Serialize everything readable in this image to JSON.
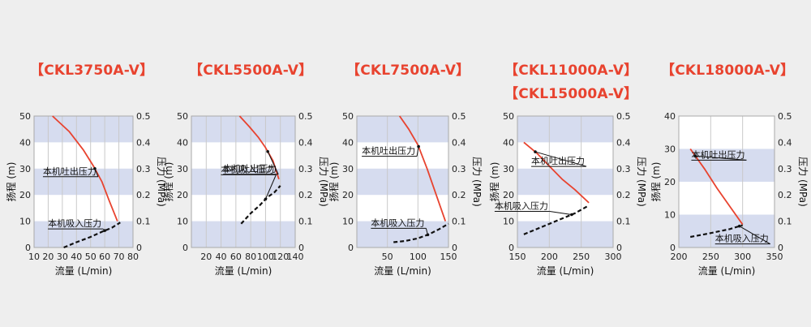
{
  "chart_data": [
    {
      "type": "line",
      "titles": [
        "【CKL3750A-V】"
      ],
      "xlabel": "流量 (L/min)",
      "ylabel_left": "扬程 (m)",
      "ylabel_right": "压力 (MPa)",
      "xlim": [
        10,
        80
      ],
      "xticks": [
        10,
        20,
        30,
        40,
        50,
        60,
        70,
        80
      ],
      "ylim_left": [
        0,
        50
      ],
      "yticks_left": [
        0,
        10,
        20,
        30,
        40,
        50
      ],
      "ylim_right": [
        0,
        0.5
      ],
      "yticks_right": [
        "0",
        "0.1",
        "0.2",
        "0.3",
        "0.4",
        "0.5"
      ],
      "series": [
        {
          "name": "本机吐出压力",
          "axis": "left",
          "style": "solid",
          "color": "#e8432f",
          "x": [
            23,
            35,
            45,
            52,
            58,
            63,
            69
          ],
          "y": [
            50,
            44,
            37,
            31,
            25,
            18,
            10
          ]
        },
        {
          "name": "本机吸入压力",
          "axis": "right",
          "style": "dashed",
          "color": "#111111",
          "x": [
            31,
            40,
            50,
            58,
            65,
            71
          ],
          "y": [
            0.0,
            0.02,
            0.04,
            0.06,
            0.075,
            0.095
          ]
        }
      ],
      "callouts": [
        {
          "text": "本机吐出压力",
          "series": 0,
          "at_x": 53
        },
        {
          "text": "本机吸入压力",
          "series": 1,
          "at_x": 60
        }
      ]
    },
    {
      "type": "line",
      "titles": [
        "【CKL5500A-V】"
      ],
      "xlabel": "流量 (L/min)",
      "ylabel_left": "扬程 (m)",
      "ylabel_right": "压力 (MPa)",
      "xlim": [
        0,
        140
      ],
      "xticks": [
        20,
        40,
        60,
        80,
        100,
        120,
        140
      ],
      "ylim_left": [
        0,
        50
      ],
      "yticks_left": [
        0,
        10,
        20,
        30,
        40,
        50
      ],
      "ylim_right": [
        0,
        0.5
      ],
      "yticks_right": [
        "0",
        "0.1",
        "0.2",
        "0.3",
        "0.4",
        "0.5"
      ],
      "series": [
        {
          "name": "本机吐出压力",
          "axis": "left",
          "style": "solid",
          "color": "#e8432f",
          "x": [
            65,
            78,
            90,
            100,
            110,
            118
          ],
          "y": [
            50,
            46,
            42,
            38,
            33,
            26
          ]
        },
        {
          "name": "本机吸入压力",
          "axis": "right",
          "style": "dashed",
          "color": "#111111",
          "x": [
            67,
            80,
            92,
            102,
            112,
            120
          ],
          "y": [
            0.09,
            0.13,
            0.16,
            0.19,
            0.21,
            0.235
          ]
        }
      ],
      "callouts": [
        {
          "text": "本机吐出压力",
          "series": 0,
          "at_x": 103
        },
        {
          "text": "本机吸入压力",
          "series": 1,
          "at_x": 100
        }
      ]
    },
    {
      "type": "line",
      "titles": [
        "【CKL7500A-V】"
      ],
      "xlabel": "流量 (L/min)",
      "ylabel_left": "扬程 (m)",
      "ylabel_right": "压力 (MPa)",
      "xlim": [
        0,
        150
      ],
      "xticks": [
        50,
        100,
        150
      ],
      "ylim_left": [
        0,
        50
      ],
      "yticks_left": [
        0,
        10,
        20,
        30,
        40,
        50
      ],
      "ylim_right": [
        0,
        0.5
      ],
      "yticks_right": [
        "0",
        "0.1",
        "0.2",
        "0.3",
        "0.4",
        "0.5"
      ],
      "series": [
        {
          "name": "本机吐出压力",
          "axis": "left",
          "style": "solid",
          "color": "#e8432f",
          "x": [
            70,
            85,
            100,
            115,
            130,
            145
          ],
          "y": [
            50,
            45,
            39,
            30,
            20,
            10
          ]
        },
        {
          "name": "本机吸入压力",
          "axis": "right",
          "style": "dashed",
          "color": "#111111",
          "x": [
            60,
            80,
            100,
            118,
            135,
            150
          ],
          "y": [
            0.02,
            0.025,
            0.035,
            0.05,
            0.07,
            0.09
          ]
        }
      ],
      "callouts": [
        {
          "text": "本机吐出压力",
          "series": 0,
          "at_x": 101
        },
        {
          "text": "本机吸入压力",
          "series": 1,
          "at_x": 116
        }
      ]
    },
    {
      "type": "line",
      "titles": [
        "【CKL11000A-V】",
        "【CKL15000A-V】"
      ],
      "xlabel": "流量 (L/min)",
      "ylabel_left": "扬程 (m)",
      "ylabel_right": "压力 (MPa)",
      "xlim": [
        150,
        300
      ],
      "xticks": [
        150,
        200,
        250,
        300
      ],
      "ylim_left": [
        0,
        50
      ],
      "yticks_left": [
        0,
        10,
        20,
        30,
        40,
        50
      ],
      "ylim_right": [
        0,
        0.5
      ],
      "yticks_right": [
        "0",
        "0.1",
        "0.2",
        "0.3",
        "0.4",
        "0.5"
      ],
      "series": [
        {
          "name": "本机吐出压力",
          "axis": "left",
          "style": "solid",
          "color": "#e8432f",
          "x": [
            160,
            180,
            200,
            220,
            240,
            262
          ],
          "y": [
            40,
            36,
            31,
            26,
            22,
            17
          ]
        },
        {
          "name": "本机吸入压力",
          "axis": "right",
          "style": "dashed",
          "color": "#111111",
          "x": [
            160,
            190,
            215,
            240,
            262
          ],
          "y": [
            0.05,
            0.08,
            0.105,
            0.13,
            0.16
          ]
        }
      ],
      "callouts": [
        {
          "text": "本机吐出压力",
          "series": 0,
          "at_x": 178
        },
        {
          "text": "本机吸入压力",
          "series": 1,
          "at_x": 235
        }
      ]
    },
    {
      "type": "line",
      "titles": [
        "【CKL18000A-V】"
      ],
      "xlabel": "流量 (L/min)",
      "ylabel_left": "扬程 (m)",
      "ylabel_right": "压力 (MPa)",
      "xlim": [
        200,
        350
      ],
      "xticks": [
        200,
        250,
        300,
        350
      ],
      "ylim_left": [
        0,
        40
      ],
      "yticks_left": [
        0,
        10,
        20,
        30,
        40
      ],
      "ylim_right": [
        0,
        0.5
      ],
      "yticks_right": [
        "0",
        "0.1",
        "0.2",
        "0.3",
        "0.4",
        "0.5"
      ],
      "series": [
        {
          "name": "本机吐出压力",
          "axis": "left",
          "style": "solid",
          "color": "#e8432f",
          "x": [
            218,
            240,
            260,
            280,
            300
          ],
          "y": [
            30,
            24,
            18,
            12.5,
            7
          ]
        },
        {
          "name": "本机吸入压力",
          "axis": "right",
          "style": "dashed",
          "color": "#111111",
          "x": [
            218,
            240,
            260,
            280,
            300
          ],
          "y": [
            0.04,
            0.05,
            0.06,
            0.07,
            0.085
          ]
        }
      ],
      "callouts": [
        {
          "text": "本机吐出压力",
          "series": 0,
          "at_x": 226
        },
        {
          "text": "本机吸入压力",
          "series": 1,
          "at_x": 295
        }
      ]
    }
  ]
}
